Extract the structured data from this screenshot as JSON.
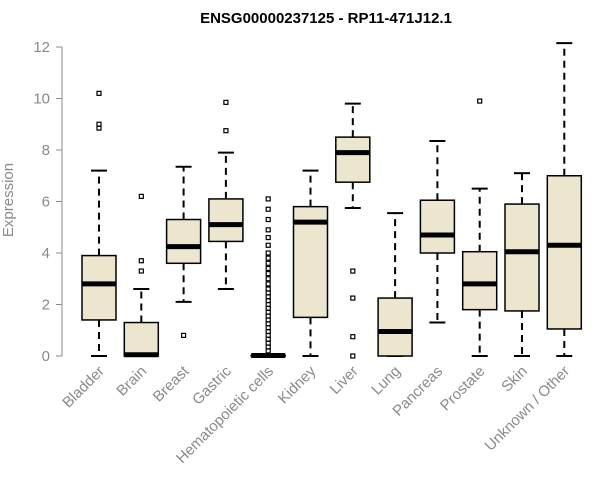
{
  "chart_data": {
    "type": "boxplot",
    "title": "ENSG00000237125 - RP11-471J12.1",
    "xlabel": "",
    "ylabel": "Expression",
    "ylim": [
      0,
      12
    ],
    "yticks": [
      0,
      2,
      4,
      6,
      8,
      10,
      12
    ],
    "colors": {
      "box_fill": "#ede6cf",
      "box_stroke": "#000000",
      "axis": "#8a8a8a"
    },
    "categories": [
      "Bladder",
      "Brain",
      "Breast",
      "Gastric",
      "Hematopoietic cells",
      "Kidney",
      "Liver",
      "Lung",
      "Pancreas",
      "Prostate",
      "Skin",
      "Unknown / Other"
    ],
    "boxes": [
      {
        "name": "Bladder",
        "whisker_low": 0,
        "q1": 1.4,
        "median": 2.8,
        "q3": 3.9,
        "whisker_high": 7.2,
        "outliers": [
          10.2,
          9.0,
          8.85
        ]
      },
      {
        "name": "Brain",
        "whisker_low": 0,
        "q1": 0,
        "median": 0.05,
        "q3": 1.3,
        "whisker_high": 2.6,
        "outliers": [
          6.2,
          3.7,
          3.3
        ]
      },
      {
        "name": "Breast",
        "whisker_low": 2.1,
        "q1": 3.6,
        "median": 4.25,
        "q3": 5.3,
        "whisker_high": 7.35,
        "outliers": [
          0.8
        ]
      },
      {
        "name": "Gastric",
        "whisker_low": 2.6,
        "q1": 4.45,
        "median": 5.1,
        "q3": 6.1,
        "whisker_high": 7.9,
        "outliers": [
          9.85,
          8.75
        ]
      },
      {
        "name": "Hematopoietic cells",
        "whisker_low": 0,
        "q1": 0,
        "median": 0.02,
        "q3": 0.02,
        "whisker_high": 0.05,
        "outliers": [
          6.1,
          5.7,
          5.3,
          4.9,
          4.6,
          4.3,
          4.0,
          3.8,
          3.6,
          3.4,
          3.2,
          3.0,
          2.8,
          2.6,
          2.45,
          2.3,
          2.15,
          2.0,
          1.85,
          1.7,
          1.55,
          1.4,
          1.25,
          1.1,
          0.95,
          0.8,
          0.65,
          0.5,
          0.35,
          0.2
        ]
      },
      {
        "name": "Kidney",
        "whisker_low": 0,
        "q1": 1.5,
        "median": 5.2,
        "q3": 5.8,
        "whisker_high": 7.2,
        "outliers": []
      },
      {
        "name": "Liver",
        "whisker_low": 5.75,
        "q1": 6.75,
        "median": 7.9,
        "q3": 8.5,
        "whisker_high": 9.8,
        "outliers": [
          3.3,
          2.25,
          0.75,
          0.0
        ]
      },
      {
        "name": "Lung",
        "whisker_low": 0,
        "q1": 0,
        "median": 0.95,
        "q3": 2.25,
        "whisker_high": 5.55,
        "outliers": []
      },
      {
        "name": "Pancreas",
        "whisker_low": 1.3,
        "q1": 4.0,
        "median": 4.7,
        "q3": 6.05,
        "whisker_high": 8.35,
        "outliers": []
      },
      {
        "name": "Prostate",
        "whisker_low": 0,
        "q1": 1.8,
        "median": 2.8,
        "q3": 4.05,
        "whisker_high": 6.5,
        "outliers": [
          9.9
        ]
      },
      {
        "name": "Skin",
        "whisker_low": 0,
        "q1": 1.75,
        "median": 4.05,
        "q3": 5.9,
        "whisker_high": 7.1,
        "outliers": []
      },
      {
        "name": "Unknown / Other",
        "whisker_low": 0,
        "q1": 1.05,
        "median": 4.3,
        "q3": 7.0,
        "whisker_high": 12.15,
        "outliers": []
      }
    ]
  }
}
